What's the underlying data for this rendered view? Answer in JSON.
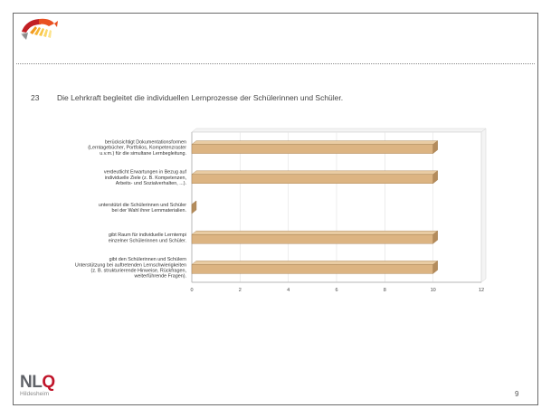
{
  "slide": {
    "question_number": "23",
    "question_text": "Die Lehrkraft begleitet die individuellen Lernprozesse der Schülerinnen und Schüler.",
    "page_number": "9",
    "logo_icon": "fan-arc-logo-icon",
    "brand": {
      "prefix": "NL",
      "accent": "Q",
      "subtitle": "Hildesheim",
      "accent_color": "#c0152a",
      "text_color": "#5f6268"
    }
  },
  "chart_data": {
    "type": "bar",
    "orientation": "horizontal",
    "style": "3d",
    "categories": [
      [
        "berücksichtigt Dokumentationsformen",
        "(Lerntagebücher, Portfolios, Kompetenzraster",
        "u.v.m.) für die simultane Lernbegleitung."
      ],
      [
        "verdeutlicht Erwartungen in Bezug auf",
        "individuelle Ziele (z. B. Kompetenzen,",
        "Arbeits- und Sozialverhalten, ...)."
      ],
      [
        "unterstützt die Schülerinnen und Schüler",
        "bei der Wahl ihrer Lernmaterialien."
      ],
      [
        "gibt Raum für individuelle Lerntempi",
        "einzelner Schülerinnen und Schüler."
      ],
      [
        "gibt den Schülerinnen und Schülern",
        "Unterstützung bei auftretenden Lernschwierigkeiten",
        "(z. B. strukturierende Hinweise, Rückfragen,",
        "weiterführende Fragen)."
      ]
    ],
    "values": [
      10,
      10,
      0,
      10,
      10
    ],
    "xlim": [
      0,
      12
    ],
    "x_ticks": [
      "0",
      "2",
      "4",
      "6",
      "8",
      "10",
      "12"
    ],
    "grid": true,
    "bar_color": "#dcb482",
    "bar_top_color": "#e9cca3",
    "bar_side_color": "#b48c5c"
  }
}
